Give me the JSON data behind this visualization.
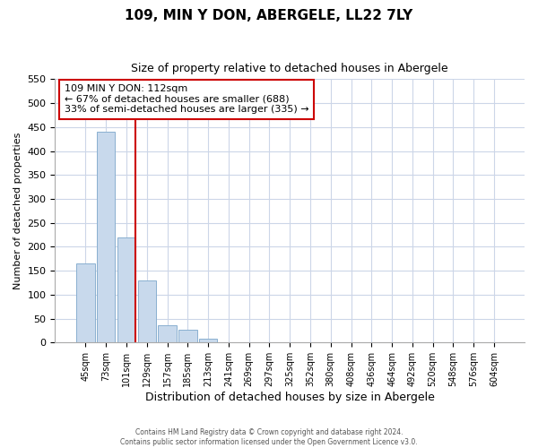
{
  "title": "109, MIN Y DON, ABERGELE, LL22 7LY",
  "subtitle": "Size of property relative to detached houses in Abergele",
  "xlabel": "Distribution of detached houses by size in Abergele",
  "ylabel": "Number of detached properties",
  "bar_labels": [
    "45sqm",
    "73sqm",
    "101sqm",
    "129sqm",
    "157sqm",
    "185sqm",
    "213sqm",
    "241sqm",
    "269sqm",
    "297sqm",
    "325sqm",
    "352sqm",
    "380sqm",
    "408sqm",
    "436sqm",
    "464sqm",
    "492sqm",
    "520sqm",
    "548sqm",
    "576sqm",
    "604sqm"
  ],
  "bar_values": [
    165,
    440,
    220,
    130,
    37,
    26,
    9,
    1,
    0,
    0,
    1,
    0,
    0,
    0,
    0,
    1,
    0,
    0,
    0,
    0,
    1
  ],
  "bar_color": "#c8d9ec",
  "bar_edge_color": "#8ab0d0",
  "ylim": [
    0,
    550
  ],
  "yticks": [
    0,
    50,
    100,
    150,
    200,
    250,
    300,
    350,
    400,
    450,
    500,
    550
  ],
  "vline_color": "#cc0000",
  "annotation_title": "109 MIN Y DON: 112sqm",
  "annotation_line1": "← 67% of detached houses are smaller (688)",
  "annotation_line2": "33% of semi-detached houses are larger (335) →",
  "annotation_box_color": "#ffffff",
  "annotation_box_edge": "#cc0000",
  "footer1": "Contains HM Land Registry data © Crown copyright and database right 2024.",
  "footer2": "Contains public sector information licensed under the Open Government Licence v3.0.",
  "background_color": "#ffffff",
  "grid_color": "#ccd6e8"
}
